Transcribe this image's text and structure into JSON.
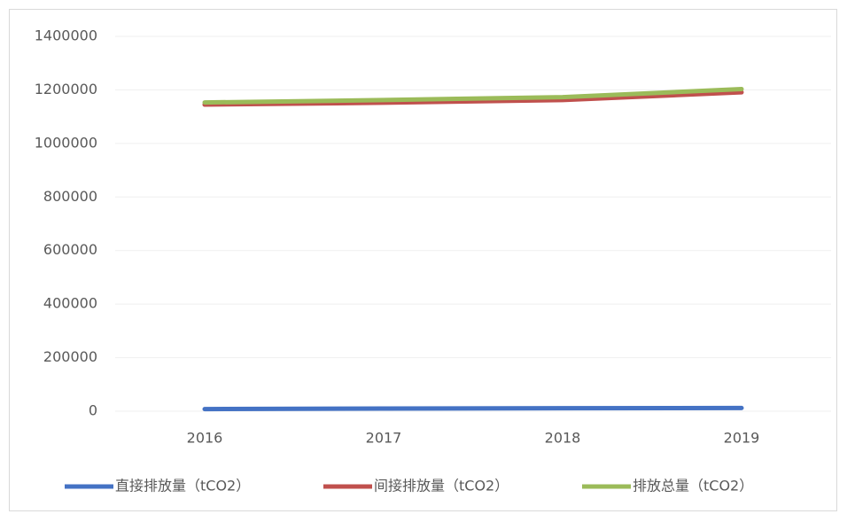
{
  "chart_data": {
    "type": "line",
    "categories": [
      "2016",
      "2017",
      "2018",
      "2019"
    ],
    "series": [
      {
        "name": "直接排放量（tCO2）",
        "color": "#4472c4",
        "values": [
          8000,
          10000,
          11000,
          12000
        ]
      },
      {
        "name": "间接排放量（tCO2）",
        "color": "#c0504d",
        "values": [
          1145000,
          1152000,
          1162000,
          1191000
        ]
      },
      {
        "name": "排放总量（tCO2）",
        "color": "#9bbb59",
        "values": [
          1153000,
          1162000,
          1173000,
          1203000
        ]
      }
    ],
    "ylim": [
      0,
      1400000
    ],
    "yticks": [
      0,
      200000,
      400000,
      600000,
      800000,
      1000000,
      1200000,
      1400000
    ],
    "grid": true,
    "legend": "bottom"
  }
}
